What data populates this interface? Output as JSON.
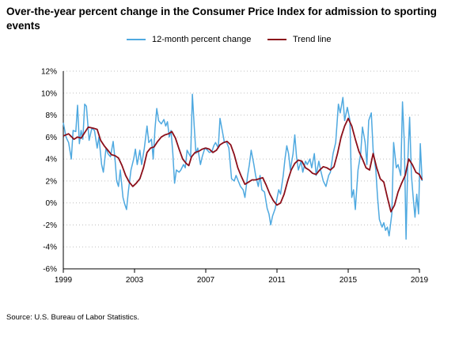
{
  "title": "Over-the-year percent change in the Consumer Price Index for admission to sporting events",
  "legend": {
    "series1": "12-month percent change",
    "series2": "Trend line"
  },
  "source": "Source: U.S. Bureau of Labor Statistics.",
  "colors": {
    "series1": "#4fa9e0",
    "series2": "#8b0f1a",
    "grid": "#bfbfbf",
    "axis": "#000000"
  },
  "chart_data": {
    "type": "line",
    "title": "Over-the-year percent change in the Consumer Price Index for admission to sporting events",
    "xlabel": "",
    "ylabel": "",
    "x_range": [
      1999,
      2019
    ],
    "ylim": [
      -6,
      12
    ],
    "y_ticks": [
      12,
      10,
      8,
      6,
      4,
      2,
      0,
      -2,
      -4,
      -6
    ],
    "y_tick_labels": [
      "12%",
      "10%",
      "8%",
      "6%",
      "4%",
      "2%",
      "0%",
      "-2%",
      "-4%",
      "-6%"
    ],
    "x_ticks": [
      1999,
      2003,
      2007,
      2011,
      2015,
      2019
    ],
    "x_tick_labels": [
      "1999",
      "2003",
      "2007",
      "2011",
      "2015",
      "2019"
    ],
    "grid": "horizontal dotted",
    "legend_position": "top",
    "series": [
      {
        "name": "12-month percent change",
        "points": [
          [
            1999.0,
            7.3
          ],
          [
            1999.15,
            6.0
          ],
          [
            1999.3,
            5.5
          ],
          [
            1999.45,
            4.0
          ],
          [
            1999.55,
            6.6
          ],
          [
            1999.7,
            6.5
          ],
          [
            1999.8,
            8.9
          ],
          [
            1999.9,
            5.4
          ],
          [
            2000.0,
            6.6
          ],
          [
            2000.1,
            5.8
          ],
          [
            2000.2,
            9.0
          ],
          [
            2000.3,
            8.8
          ],
          [
            2000.45,
            5.7
          ],
          [
            2000.6,
            6.8
          ],
          [
            2000.75,
            6.6
          ],
          [
            2000.9,
            5.0
          ],
          [
            2001.0,
            6.0
          ],
          [
            2001.15,
            3.5
          ],
          [
            2001.25,
            2.8
          ],
          [
            2001.4,
            5.0
          ],
          [
            2001.5,
            4.5
          ],
          [
            2001.65,
            4.2
          ],
          [
            2001.8,
            5.6
          ],
          [
            2001.9,
            4.0
          ],
          [
            2002.0,
            2.0
          ],
          [
            2002.1,
            1.5
          ],
          [
            2002.2,
            3.0
          ],
          [
            2002.35,
            0.5
          ],
          [
            2002.45,
            -0.1
          ],
          [
            2002.55,
            -0.6
          ],
          [
            2002.65,
            1.0
          ],
          [
            2002.8,
            3.0
          ],
          [
            2002.95,
            4.0
          ],
          [
            2003.05,
            4.9
          ],
          [
            2003.15,
            3.5
          ],
          [
            2003.3,
            4.8
          ],
          [
            2003.4,
            3.5
          ],
          [
            2003.55,
            5.0
          ],
          [
            2003.7,
            7.0
          ],
          [
            2003.8,
            5.5
          ],
          [
            2003.95,
            5.8
          ],
          [
            2004.05,
            4.0
          ],
          [
            2004.15,
            6.8
          ],
          [
            2004.25,
            8.6
          ],
          [
            2004.35,
            7.5
          ],
          [
            2004.5,
            7.2
          ],
          [
            2004.65,
            7.6
          ],
          [
            2004.75,
            7.0
          ],
          [
            2004.85,
            7.4
          ],
          [
            2004.95,
            6.0
          ],
          [
            2005.05,
            6.6
          ],
          [
            2005.15,
            4.5
          ],
          [
            2005.25,
            1.8
          ],
          [
            2005.35,
            3.0
          ],
          [
            2005.5,
            2.8
          ],
          [
            2005.6,
            3.0
          ],
          [
            2005.75,
            3.5
          ],
          [
            2005.85,
            3.2
          ],
          [
            2005.95,
            4.8
          ],
          [
            2006.05,
            4.5
          ],
          [
            2006.15,
            4.2
          ],
          [
            2006.25,
            9.9
          ],
          [
            2006.35,
            7.0
          ],
          [
            2006.45,
            4.5
          ],
          [
            2006.55,
            5.0
          ],
          [
            2006.7,
            3.5
          ],
          [
            2006.8,
            4.2
          ],
          [
            2006.95,
            5.0
          ],
          [
            2007.1,
            4.8
          ],
          [
            2007.2,
            4.6
          ],
          [
            2007.35,
            4.7
          ],
          [
            2007.45,
            5.2
          ],
          [
            2007.55,
            5.5
          ],
          [
            2007.7,
            5.0
          ],
          [
            2007.8,
            7.7
          ],
          [
            2007.9,
            6.8
          ],
          [
            2008.05,
            5.5
          ],
          [
            2008.15,
            5.6
          ],
          [
            2008.3,
            5.0
          ],
          [
            2008.45,
            2.2
          ],
          [
            2008.6,
            2.0
          ],
          [
            2008.7,
            2.5
          ],
          [
            2008.8,
            2.1
          ],
          [
            2008.95,
            1.5
          ],
          [
            2009.1,
            1.2
          ],
          [
            2009.2,
            0.5
          ],
          [
            2009.35,
            2.5
          ],
          [
            2009.45,
            3.5
          ],
          [
            2009.55,
            4.8
          ],
          [
            2009.7,
            3.5
          ],
          [
            2009.8,
            2.5
          ],
          [
            2009.95,
            1.5
          ],
          [
            2010.05,
            2.5
          ],
          [
            2010.15,
            1.2
          ],
          [
            2010.3,
            1.0
          ],
          [
            2010.45,
            -0.5
          ],
          [
            2010.55,
            -1.0
          ],
          [
            2010.65,
            -2.0
          ],
          [
            2010.75,
            -1.2
          ],
          [
            2010.9,
            -0.5
          ],
          [
            2011.0,
            0.4
          ],
          [
            2011.1,
            1.2
          ],
          [
            2011.2,
            0.8
          ],
          [
            2011.35,
            2.5
          ],
          [
            2011.45,
            4.0
          ],
          [
            2011.55,
            5.2
          ],
          [
            2011.65,
            4.5
          ],
          [
            2011.75,
            3.0
          ],
          [
            2011.9,
            4.5
          ],
          [
            2012.0,
            6.2
          ],
          [
            2012.1,
            4.2
          ],
          [
            2012.2,
            3.0
          ],
          [
            2012.35,
            3.8
          ],
          [
            2012.45,
            2.8
          ],
          [
            2012.6,
            3.8
          ],
          [
            2012.7,
            3.5
          ],
          [
            2012.85,
            4.0
          ],
          [
            2012.95,
            3.2
          ],
          [
            2013.1,
            4.5
          ],
          [
            2013.2,
            2.5
          ],
          [
            2013.35,
            3.8
          ],
          [
            2013.45,
            3.0
          ],
          [
            2013.6,
            2.0
          ],
          [
            2013.75,
            1.5
          ],
          [
            2013.9,
            2.5
          ],
          [
            2014.0,
            2.8
          ],
          [
            2014.15,
            4.5
          ],
          [
            2014.3,
            5.5
          ],
          [
            2014.45,
            9.0
          ],
          [
            2014.55,
            8.2
          ],
          [
            2014.7,
            9.6
          ],
          [
            2014.8,
            7.5
          ],
          [
            2014.95,
            8.7
          ],
          [
            2015.1,
            7.5
          ],
          [
            2015.2,
            0.5
          ],
          [
            2015.3,
            1.2
          ],
          [
            2015.4,
            -0.6
          ],
          [
            2015.55,
            3.0
          ],
          [
            2015.7,
            4.5
          ],
          [
            2015.8,
            6.9
          ],
          [
            2015.95,
            5.5
          ],
          [
            2016.05,
            3.5
          ],
          [
            2016.15,
            7.5
          ],
          [
            2016.3,
            8.2
          ],
          [
            2016.4,
            4.8
          ],
          [
            2016.55,
            3.0
          ],
          [
            2016.65,
            0.5
          ],
          [
            2016.75,
            -1.5
          ],
          [
            2016.9,
            -2.2
          ],
          [
            2017.0,
            -1.8
          ],
          [
            2017.1,
            -2.5
          ],
          [
            2017.2,
            -2.2
          ],
          [
            2017.3,
            -3.0
          ],
          [
            2017.45,
            -1.0
          ],
          [
            2017.55,
            5.5
          ],
          [
            2017.7,
            3.2
          ],
          [
            2017.8,
            3.5
          ],
          [
            2017.95,
            2.5
          ],
          [
            2018.05,
            9.2
          ],
          [
            2018.15,
            5.5
          ],
          [
            2018.25,
            -3.3
          ],
          [
            2018.35,
            4.0
          ],
          [
            2018.45,
            7.8
          ],
          [
            2018.55,
            2.5
          ],
          [
            2018.65,
            0.5
          ],
          [
            2018.75,
            -1.3
          ],
          [
            2018.85,
            0.8
          ],
          [
            2018.95,
            -1.0
          ],
          [
            2019.05,
            5.4
          ],
          [
            2019.15,
            2.0
          ]
        ]
      },
      {
        "name": "Trend line",
        "points": [
          [
            1999.0,
            6.1
          ],
          [
            1999.3,
            6.3
          ],
          [
            1999.6,
            5.8
          ],
          [
            1999.8,
            6.0
          ],
          [
            2000.0,
            5.9
          ],
          [
            2000.2,
            6.4
          ],
          [
            2000.4,
            6.9
          ],
          [
            2000.7,
            6.8
          ],
          [
            2000.9,
            6.7
          ],
          [
            2001.1,
            5.7
          ],
          [
            2001.3,
            5.2
          ],
          [
            2001.5,
            4.8
          ],
          [
            2001.7,
            4.4
          ],
          [
            2001.9,
            4.3
          ],
          [
            2002.1,
            4.1
          ],
          [
            2002.3,
            3.4
          ],
          [
            2002.5,
            2.5
          ],
          [
            2002.7,
            1.9
          ],
          [
            2002.9,
            1.5
          ],
          [
            2003.1,
            1.8
          ],
          [
            2003.3,
            2.2
          ],
          [
            2003.5,
            3.2
          ],
          [
            2003.7,
            4.6
          ],
          [
            2003.9,
            5.0
          ],
          [
            2004.1,
            5.1
          ],
          [
            2004.3,
            5.6
          ],
          [
            2004.5,
            6.0
          ],
          [
            2004.7,
            6.2
          ],
          [
            2004.9,
            6.3
          ],
          [
            2005.1,
            6.5
          ],
          [
            2005.3,
            5.9
          ],
          [
            2005.5,
            4.9
          ],
          [
            2005.7,
            4.0
          ],
          [
            2005.9,
            3.6
          ],
          [
            2006.05,
            3.4
          ],
          [
            2006.2,
            4.2
          ],
          [
            2006.4,
            4.6
          ],
          [
            2006.6,
            4.7
          ],
          [
            2006.8,
            4.9
          ],
          [
            2007.0,
            5.0
          ],
          [
            2007.2,
            4.9
          ],
          [
            2007.4,
            4.6
          ],
          [
            2007.6,
            4.8
          ],
          [
            2007.8,
            5.3
          ],
          [
            2008.0,
            5.5
          ],
          [
            2008.2,
            5.6
          ],
          [
            2008.4,
            5.3
          ],
          [
            2008.6,
            4.4
          ],
          [
            2008.8,
            3.2
          ],
          [
            2009.0,
            2.4
          ],
          [
            2009.2,
            1.7
          ],
          [
            2009.4,
            1.9
          ],
          [
            2009.6,
            2.1
          ],
          [
            2009.8,
            2.1
          ],
          [
            2010.0,
            2.2
          ],
          [
            2010.2,
            2.3
          ],
          [
            2010.4,
            1.6
          ],
          [
            2010.6,
            0.8
          ],
          [
            2010.8,
            0.2
          ],
          [
            2011.0,
            -0.2
          ],
          [
            2011.2,
            0.0
          ],
          [
            2011.4,
            0.8
          ],
          [
            2011.6,
            2.0
          ],
          [
            2011.8,
            3.0
          ],
          [
            2012.0,
            3.6
          ],
          [
            2012.2,
            3.9
          ],
          [
            2012.4,
            3.8
          ],
          [
            2012.6,
            3.2
          ],
          [
            2012.8,
            3.0
          ],
          [
            2013.0,
            2.7
          ],
          [
            2013.2,
            2.6
          ],
          [
            2013.4,
            3.0
          ],
          [
            2013.6,
            3.3
          ],
          [
            2013.8,
            3.2
          ],
          [
            2014.0,
            3.0
          ],
          [
            2014.2,
            3.3
          ],
          [
            2014.4,
            4.5
          ],
          [
            2014.6,
            6.0
          ],
          [
            2014.8,
            7.0
          ],
          [
            2015.0,
            7.7
          ],
          [
            2015.2,
            7.0
          ],
          [
            2015.4,
            5.8
          ],
          [
            2015.6,
            4.7
          ],
          [
            2015.8,
            4.0
          ],
          [
            2016.0,
            3.2
          ],
          [
            2016.2,
            3.0
          ],
          [
            2016.4,
            4.5
          ],
          [
            2016.6,
            3.2
          ],
          [
            2016.8,
            2.2
          ],
          [
            2017.0,
            1.9
          ],
          [
            2017.2,
            0.5
          ],
          [
            2017.4,
            -0.8
          ],
          [
            2017.6,
            -0.2
          ],
          [
            2017.8,
            1.0
          ],
          [
            2018.0,
            1.8
          ],
          [
            2018.2,
            2.5
          ],
          [
            2018.4,
            4.0
          ],
          [
            2018.6,
            3.5
          ],
          [
            2018.8,
            2.8
          ],
          [
            2019.0,
            2.6
          ],
          [
            2019.15,
            2.1
          ]
        ]
      }
    ]
  }
}
